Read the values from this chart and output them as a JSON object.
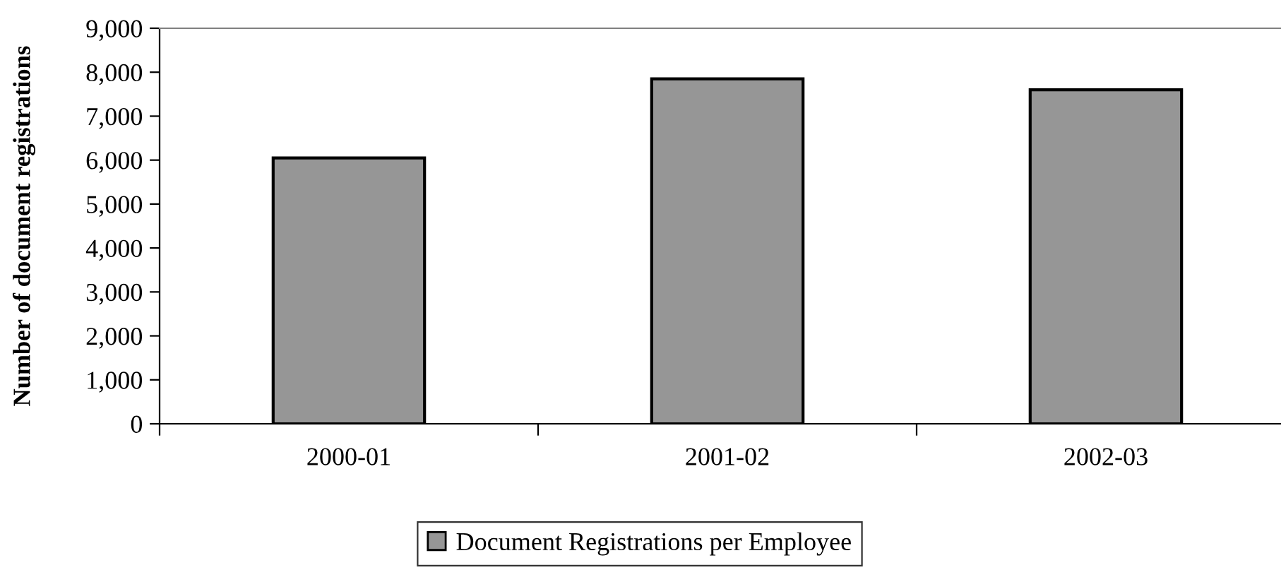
{
  "chart_data": {
    "type": "bar",
    "ylabel": "Number of document registrations",
    "categories": [
      "2000-01",
      "2001-02",
      "2002-03"
    ],
    "series": [
      {
        "name": "Document Registrations per Employee",
        "color": "#969696",
        "values": [
          6050,
          7850,
          7600
        ]
      }
    ],
    "ylim": [
      0,
      9000
    ],
    "yticks": [
      {
        "value": 0,
        "label": "0"
      },
      {
        "value": 1000,
        "label": "1,000"
      },
      {
        "value": 2000,
        "label": "2,000"
      },
      {
        "value": 3000,
        "label": "3,000"
      },
      {
        "value": 4000,
        "label": "4,000"
      },
      {
        "value": 5000,
        "label": "5,000"
      },
      {
        "value": 6000,
        "label": "6,000"
      },
      {
        "value": 7000,
        "label": "7,000"
      },
      {
        "value": 8000,
        "label": "8,000"
      },
      {
        "value": 9000,
        "label": "9,000"
      }
    ],
    "grid": false,
    "legend": "bottom"
  }
}
